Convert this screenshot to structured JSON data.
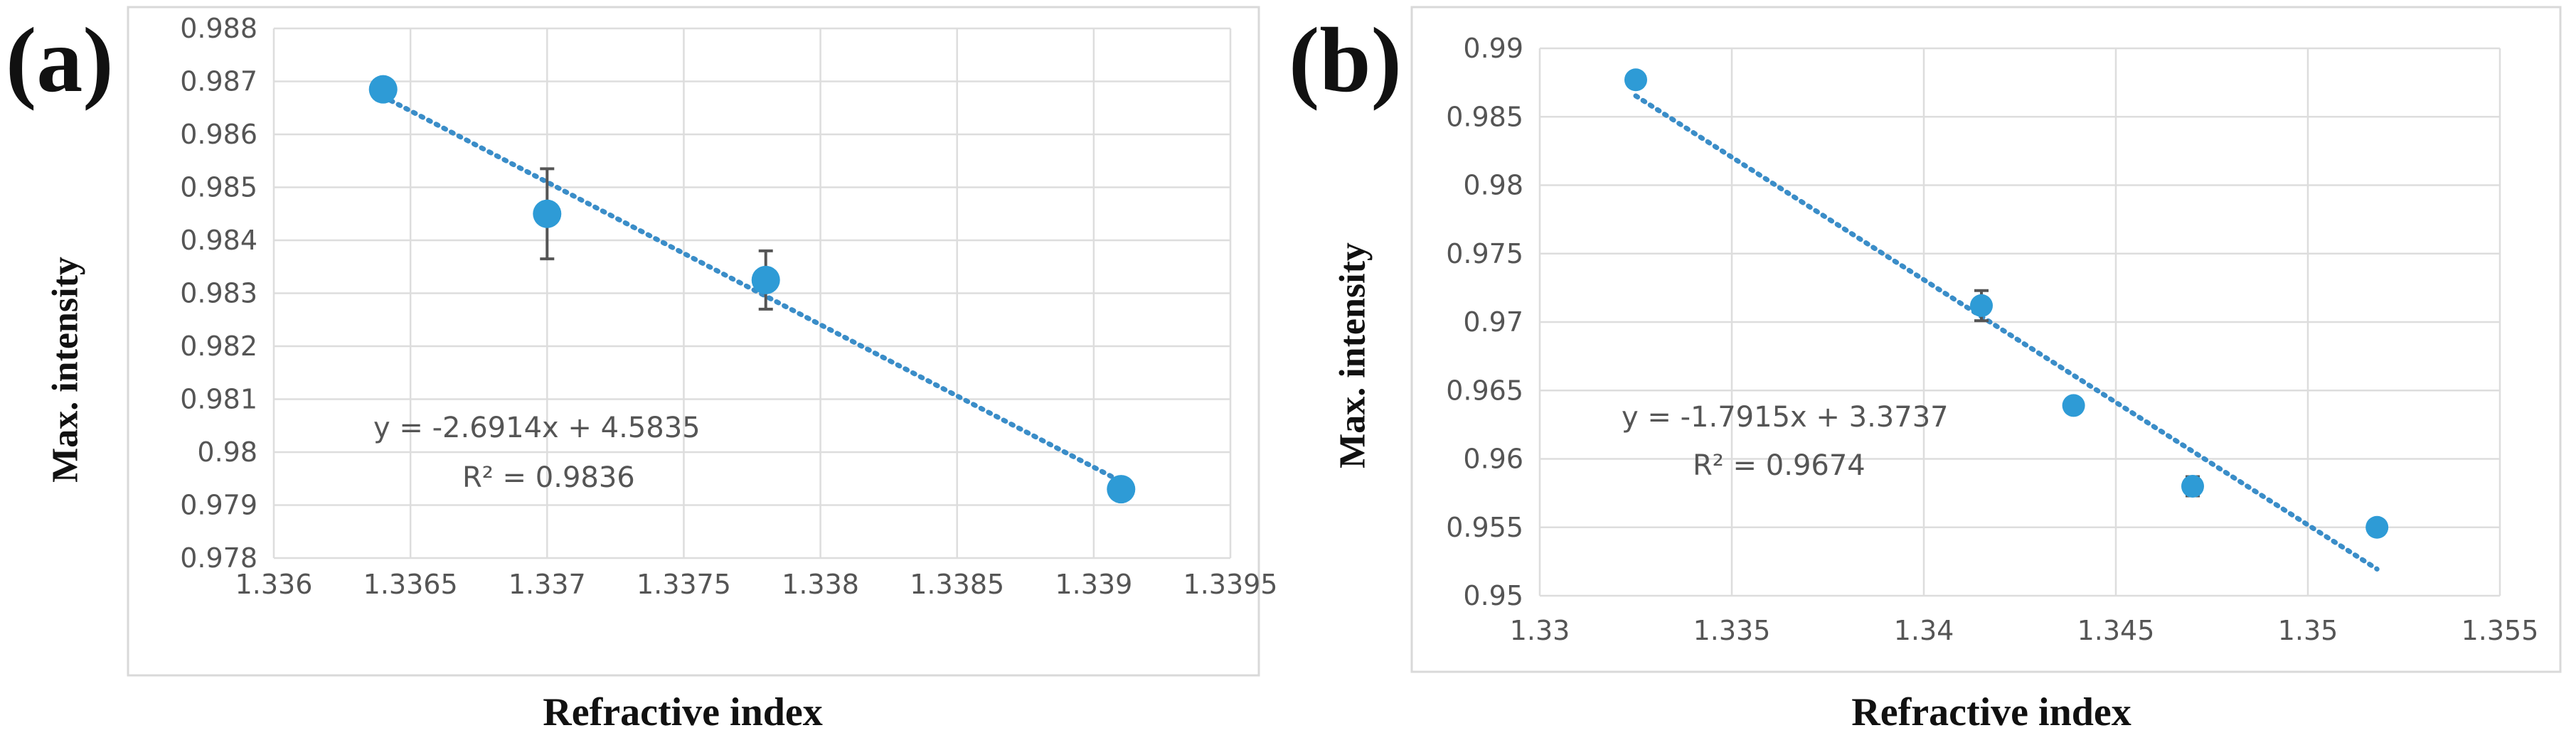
{
  "chart_data": [
    {
      "type": "scatter",
      "panel_label": "(a)",
      "title": "",
      "xlabel": "Refractive index",
      "ylabel": "Max. intensity",
      "xlim": [
        1.336,
        1.3395
      ],
      "ylim": [
        0.978,
        0.988
      ],
      "x_ticks": [
        "1.336",
        "1.3365",
        "1.337",
        "1.3375",
        "1.338",
        "1.3385",
        "1.339",
        "1.3395"
      ],
      "y_ticks": [
        "0.978",
        "0.979",
        "0.98",
        "0.981",
        "0.982",
        "0.983",
        "0.984",
        "0.985",
        "0.986",
        "0.987",
        "0.988"
      ],
      "grid": "vertical and horizontal",
      "marker_color": "#2E9BD6",
      "trendline_color": "#3A8DC8",
      "series": [
        {
          "points": [
            {
              "x": 1.3364,
              "y": 0.98685,
              "err": 0.0002
            },
            {
              "x": 1.337,
              "y": 0.9845,
              "err": 0.00085
            },
            {
              "x": 1.3378,
              "y": 0.98325,
              "err": 0.00055
            },
            {
              "x": 1.3391,
              "y": 0.9793,
              "err": 0.0001
            }
          ]
        }
      ],
      "trendline": {
        "slope": -2.6914,
        "intercept": 4.5835
      },
      "equation": "y = -2.6914x + 4.5835",
      "r2": "R² = 0.9836"
    },
    {
      "type": "scatter",
      "panel_label": "(b)",
      "title": "",
      "xlabel": "Refractive index",
      "ylabel": "Max. intensity",
      "xlim": [
        1.33,
        1.355
      ],
      "ylim": [
        0.95,
        0.99
      ],
      "x_ticks": [
        "1.33",
        "1.335",
        "1.34",
        "1.345",
        "1.35",
        "1.355"
      ],
      "y_ticks": [
        "0.95",
        "0.955",
        "0.96",
        "0.965",
        "0.97",
        "0.975",
        "0.98",
        "0.985",
        "0.99"
      ],
      "grid": "vertical and horizontal",
      "marker_color": "#2E9BD6",
      "trendline_color": "#3A8DC8",
      "series": [
        {
          "points": [
            {
              "x": 1.3325,
              "y": 0.9877,
              "err": 0.0002
            },
            {
              "x": 1.3415,
              "y": 0.9712,
              "err": 0.0011
            },
            {
              "x": 1.3439,
              "y": 0.9639,
              "err": 0.0002
            },
            {
              "x": 1.347,
              "y": 0.958,
              "err": 0.0007
            },
            {
              "x": 1.3518,
              "y": 0.955,
              "err": 0.0002
            }
          ]
        }
      ],
      "trendline": {
        "slope": -1.7915,
        "intercept": 3.3737
      },
      "equation": "y = -1.7915x + 3.3737",
      "r2": "R² = 0.9674"
    }
  ]
}
